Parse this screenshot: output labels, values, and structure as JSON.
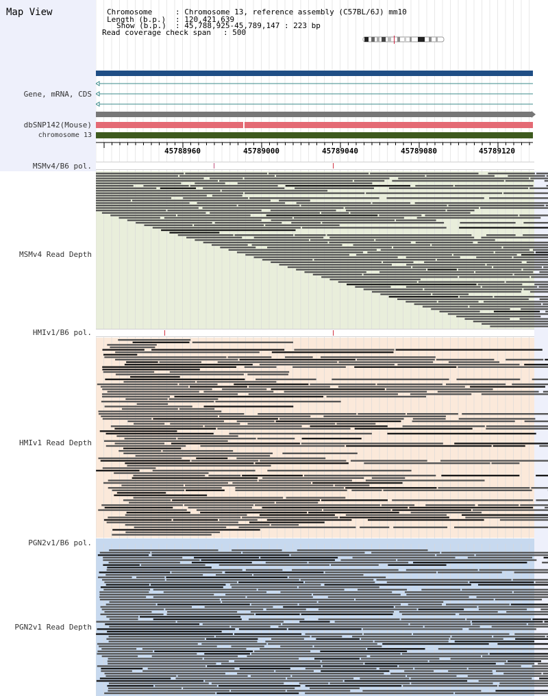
{
  "header": {
    "title": "Map View",
    "info": {
      "chromosome_label": "Chromosome",
      "chromosome_value": ": Chromosome 13, reference assembly (C57BL/6J) mm10",
      "length_label": "Length (b.p.)",
      "length_value": ": 120,421,639",
      "show_label": "Show (b.p.)",
      "show_value": ": 45,788,925-45,789,147 : 223 bp",
      "coverage_label": "Read coverage check span",
      "coverage_value": ": 500"
    }
  },
  "tracks": {
    "gene_label": "Gene, mRNA, CDS",
    "snp_label": "dbSNP142(Mouse)",
    "chrom_label": "chromosome 13",
    "ruler_ticks": [
      "45788960",
      "45789000",
      "45789040",
      "45789080",
      "45789120"
    ]
  },
  "strains": [
    {
      "pol_label": "MSMv4/B6 pol.",
      "depth_label": "MSMv4 Read Depth"
    },
    {
      "pol_label": "HMIv1/B6 pol.",
      "depth_label": "HMIv1 Read Depth"
    },
    {
      "pol_label": "PGN2v1/B6 pol.",
      "depth_label": "PGN2v1 Read Depth"
    }
  ],
  "colors": {
    "msm_bg": "#e9eedb",
    "hmi_bg": "#fbe9da",
    "pgn_bg": "#c7d9ef",
    "read": "#555555",
    "read_dark": "#1a1a1a",
    "gene_bar": "#1f4e85",
    "snp_bar": "#e46a74",
    "chrom_bar": "#3e5a1e"
  }
}
